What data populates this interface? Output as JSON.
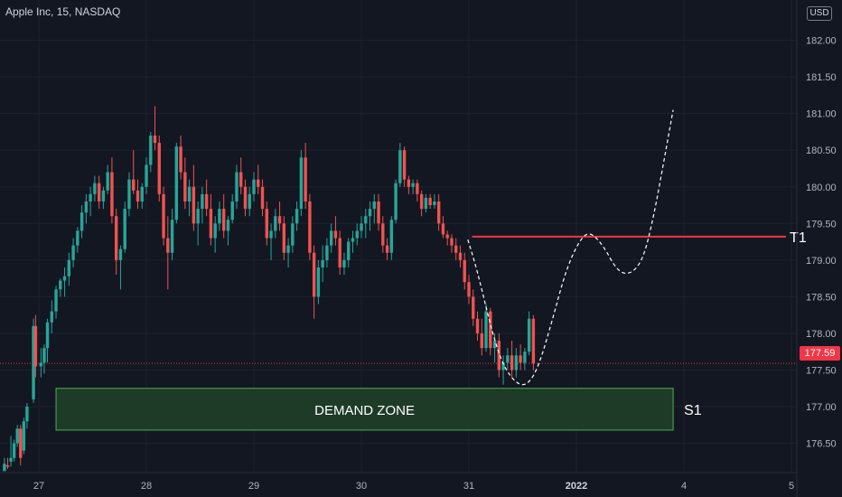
{
  "header": {
    "symbol_title": "Apple Inc, 15, NASDAQ",
    "currency": "USD"
  },
  "annotations": {
    "zone_label": "DEMAND ZONE",
    "s1_label": "S1",
    "t1_label": "T1",
    "last_price": "177.59"
  },
  "colors": {
    "background": "#131722",
    "up": "#26a69a",
    "down": "#ef5350",
    "target_line": "#f23645",
    "zone_fill": "#1e3b27",
    "zone_border": "#4caf50",
    "projection": "#ffffff"
  },
  "chart_data": {
    "type": "candlestick",
    "title": "Apple Inc, 15, NASDAQ",
    "y_axis": {
      "ticks": [
        176.5,
        177.0,
        177.5,
        178.0,
        178.5,
        179.0,
        179.5,
        180.0,
        180.5,
        181.0,
        181.5,
        182.0
      ],
      "range": [
        176.1,
        182.55
      ],
      "position": "right"
    },
    "x_axis": {
      "ticks": [
        {
          "label": "27",
          "x": 0
        },
        {
          "label": "28",
          "x": 10
        },
        {
          "label": "29",
          "x": 20
        },
        {
          "label": "30",
          "x": 30
        },
        {
          "label": "31",
          "x": 40
        },
        {
          "label": "2022",
          "x": 50,
          "bold": true
        },
        {
          "label": "4",
          "x": 60
        },
        {
          "label": "5",
          "x": 70
        }
      ]
    },
    "current_price": 177.59,
    "target": {
      "label": "T1",
      "price": 179.32,
      "from_x": 40.3,
      "to_x": 69.5
    },
    "demand_zone": {
      "label": "DEMAND ZONE",
      "side_label": "S1",
      "price_low": 176.68,
      "price_high": 177.25,
      "from_x": 1.6,
      "to_x": 59.0
    },
    "projection_path": [
      [
        39.9,
        179.28
      ],
      [
        40.5,
        179.0
      ],
      [
        41.2,
        178.6
      ],
      [
        42.2,
        178.0
      ],
      [
        43.2,
        177.55
      ],
      [
        44.5,
        177.3
      ],
      [
        45.5,
        177.3
      ],
      [
        46.5,
        177.55
      ],
      [
        47.8,
        178.2
      ],
      [
        49.0,
        178.85
      ],
      [
        50.2,
        179.25
      ],
      [
        51.2,
        179.4
      ],
      [
        52.5,
        179.2
      ],
      [
        53.8,
        178.85
      ],
      [
        55.0,
        178.8
      ],
      [
        56.2,
        179.0
      ],
      [
        57.2,
        179.6
      ],
      [
        58.2,
        180.4
      ],
      [
        59.0,
        181.05
      ]
    ],
    "candles": [
      [
        -3.2,
        176.12,
        176.3,
        176.15,
        176.22
      ],
      [
        -2.9,
        176.2,
        176.3,
        176.15,
        176.18
      ],
      [
        -2.6,
        176.25,
        176.6,
        176.18,
        176.3
      ],
      [
        -2.3,
        176.3,
        176.55,
        176.25,
        176.5
      ],
      [
        -2.0,
        176.5,
        176.75,
        176.45,
        176.7
      ],
      [
        -1.7,
        176.7,
        176.75,
        176.2,
        176.3
      ],
      [
        -1.4,
        176.4,
        176.85,
        176.35,
        176.8
      ],
      [
        -1.1,
        176.8,
        177.05,
        176.7,
        177.0
      ],
      [
        -0.5,
        177.1,
        178.2,
        177.05,
        178.1
      ],
      [
        -0.3,
        178.1,
        178.25,
        177.4,
        177.55
      ],
      [
        0.2,
        177.55,
        177.8,
        177.4,
        177.6
      ],
      [
        0.5,
        177.6,
        177.85,
        177.45,
        177.8
      ],
      [
        0.8,
        177.8,
        178.2,
        177.6,
        178.15
      ],
      [
        1.2,
        178.15,
        178.45,
        178.0,
        178.3
      ],
      [
        1.6,
        178.3,
        178.65,
        178.2,
        178.6
      ],
      [
        2.0,
        178.6,
        178.75,
        178.5,
        178.72
      ],
      [
        2.4,
        178.72,
        178.9,
        178.5,
        178.78
      ],
      [
        2.8,
        178.78,
        179.1,
        178.65,
        179.0
      ],
      [
        3.2,
        179.0,
        179.3,
        178.9,
        179.2
      ],
      [
        3.6,
        179.2,
        179.45,
        179.1,
        179.4
      ],
      [
        4.0,
        179.4,
        179.75,
        179.3,
        179.65
      ],
      [
        4.4,
        179.65,
        179.9,
        179.5,
        179.8
      ],
      [
        4.8,
        179.8,
        180.0,
        179.6,
        179.9
      ],
      [
        5.2,
        179.9,
        180.15,
        179.8,
        180.05
      ],
      [
        5.6,
        180.05,
        180.15,
        179.7,
        179.8
      ],
      [
        6.0,
        179.8,
        180.0,
        179.7,
        179.95
      ],
      [
        6.4,
        179.95,
        180.3,
        179.9,
        180.2
      ],
      [
        6.8,
        180.2,
        180.4,
        179.5,
        179.6
      ],
      [
        7.2,
        179.6,
        179.7,
        178.8,
        179.0
      ],
      [
        7.6,
        179.0,
        179.2,
        178.6,
        179.15
      ],
      [
        8.0,
        179.15,
        179.8,
        179.1,
        179.7
      ],
      [
        8.4,
        179.7,
        180.2,
        179.6,
        180.1
      ],
      [
        8.8,
        180.1,
        180.5,
        179.9,
        179.95
      ],
      [
        9.2,
        179.95,
        180.1,
        179.7,
        179.8
      ],
      [
        9.6,
        179.8,
        180.05,
        179.7,
        180.0
      ],
      [
        10.0,
        180.0,
        180.4,
        179.9,
        180.3
      ],
      [
        10.4,
        180.3,
        180.75,
        180.2,
        180.7
      ],
      [
        10.8,
        180.7,
        181.1,
        180.5,
        180.6
      ],
      [
        11.2,
        180.6,
        180.7,
        179.8,
        179.9
      ],
      [
        11.6,
        179.9,
        180.0,
        179.2,
        179.3
      ],
      [
        12.0,
        179.3,
        179.6,
        178.6,
        179.1
      ],
      [
        12.4,
        179.1,
        179.7,
        179.0,
        179.55
      ],
      [
        12.8,
        179.55,
        180.6,
        179.5,
        180.55
      ],
      [
        13.2,
        180.55,
        180.7,
        180.1,
        180.2
      ],
      [
        13.6,
        180.2,
        180.4,
        179.7,
        179.8
      ],
      [
        14.0,
        179.8,
        180.1,
        179.6,
        180.0
      ],
      [
        14.4,
        180.0,
        180.3,
        179.4,
        179.5
      ],
      [
        14.8,
        179.5,
        179.8,
        179.2,
        179.7
      ],
      [
        15.2,
        179.7,
        180.0,
        179.5,
        179.9
      ],
      [
        15.6,
        179.9,
        180.1,
        179.6,
        179.7
      ],
      [
        16.0,
        179.7,
        179.9,
        179.2,
        179.3
      ],
      [
        16.4,
        179.3,
        179.6,
        179.1,
        179.5
      ],
      [
        16.8,
        179.5,
        179.8,
        179.4,
        179.7
      ],
      [
        17.2,
        179.7,
        179.9,
        179.3,
        179.4
      ],
      [
        17.6,
        179.4,
        179.6,
        179.2,
        179.55
      ],
      [
        18.0,
        179.55,
        179.9,
        179.5,
        179.8
      ],
      [
        18.4,
        179.8,
        180.3,
        179.7,
        180.2
      ],
      [
        18.8,
        180.2,
        180.4,
        179.9,
        180.0
      ],
      [
        19.2,
        180.0,
        180.1,
        179.6,
        179.7
      ],
      [
        19.6,
        179.7,
        180.0,
        179.6,
        179.9
      ],
      [
        20.0,
        179.9,
        180.2,
        179.8,
        180.1
      ],
      [
        20.4,
        180.1,
        180.3,
        179.9,
        180.0
      ],
      [
        20.8,
        180.0,
        180.1,
        179.6,
        179.7
      ],
      [
        21.2,
        179.7,
        179.8,
        179.2,
        179.3
      ],
      [
        21.6,
        179.3,
        179.5,
        179.0,
        179.4
      ],
      [
        22.0,
        179.4,
        179.7,
        179.3,
        179.6
      ],
      [
        22.4,
        179.6,
        179.8,
        179.4,
        179.5
      ],
      [
        22.8,
        179.5,
        179.6,
        179.0,
        179.1
      ],
      [
        23.2,
        179.1,
        179.3,
        178.9,
        179.2
      ],
      [
        23.6,
        179.2,
        179.6,
        179.1,
        179.5
      ],
      [
        24.0,
        179.5,
        179.8,
        179.4,
        179.7
      ],
      [
        24.4,
        179.7,
        180.5,
        179.6,
        180.4
      ],
      [
        24.8,
        180.4,
        180.6,
        179.7,
        179.8
      ],
      [
        25.2,
        179.8,
        179.9,
        179.0,
        179.1
      ],
      [
        25.6,
        179.1,
        179.2,
        178.2,
        178.5
      ],
      [
        26.0,
        178.5,
        179.0,
        178.4,
        178.9
      ],
      [
        26.4,
        178.9,
        179.2,
        178.7,
        179.0
      ],
      [
        26.8,
        179.0,
        179.3,
        178.9,
        179.2
      ],
      [
        27.2,
        179.2,
        179.5,
        179.1,
        179.4
      ],
      [
        27.6,
        179.4,
        179.6,
        179.2,
        179.3
      ],
      [
        28.0,
        179.3,
        179.4,
        178.8,
        178.9
      ],
      [
        28.4,
        178.9,
        179.1,
        178.8,
        179.0
      ],
      [
        28.8,
        179.0,
        179.3,
        178.9,
        179.25
      ],
      [
        29.2,
        179.25,
        179.4,
        179.1,
        179.3
      ],
      [
        29.6,
        179.3,
        179.5,
        179.2,
        179.4
      ],
      [
        30.0,
        179.4,
        179.6,
        179.3,
        179.5
      ],
      [
        30.4,
        179.5,
        179.7,
        179.3,
        179.6
      ],
      [
        30.8,
        179.6,
        179.8,
        179.4,
        179.7
      ],
      [
        31.2,
        179.7,
        179.9,
        179.5,
        179.8
      ],
      [
        31.6,
        179.8,
        179.9,
        179.4,
        179.5
      ],
      [
        32.0,
        179.5,
        179.6,
        179.1,
        179.2
      ],
      [
        32.4,
        179.2,
        179.3,
        179.0,
        179.1
      ],
      [
        32.8,
        179.1,
        179.6,
        179.0,
        179.55
      ],
      [
        33.2,
        179.55,
        180.1,
        179.5,
        180.05
      ],
      [
        33.6,
        180.05,
        180.6,
        180.0,
        180.5
      ],
      [
        34.0,
        180.5,
        180.55,
        180.0,
        180.1
      ],
      [
        34.4,
        180.1,
        180.15,
        179.9,
        180.0
      ],
      [
        34.8,
        180.0,
        180.1,
        179.9,
        180.05
      ],
      [
        35.2,
        180.05,
        180.1,
        179.8,
        179.9
      ],
      [
        35.6,
        179.9,
        179.95,
        179.6,
        179.7
      ],
      [
        36.0,
        179.7,
        179.9,
        179.65,
        179.85
      ],
      [
        36.4,
        179.85,
        179.9,
        179.7,
        179.75
      ],
      [
        36.8,
        179.75,
        179.9,
        179.7,
        179.8
      ],
      [
        37.2,
        179.8,
        179.9,
        179.4,
        179.5
      ],
      [
        37.6,
        179.5,
        179.6,
        179.3,
        179.35
      ],
      [
        38.0,
        179.35,
        179.4,
        179.2,
        179.3
      ],
      [
        38.4,
        179.3,
        179.35,
        179.1,
        179.2
      ],
      [
        38.8,
        179.2,
        179.3,
        179.0,
        179.1
      ],
      [
        39.2,
        179.1,
        179.2,
        178.9,
        179.0
      ],
      [
        39.6,
        179.0,
        179.1,
        178.6,
        178.7
      ],
      [
        40.0,
        178.7,
        178.8,
        178.4,
        178.5
      ],
      [
        40.4,
        178.5,
        178.6,
        178.1,
        178.2
      ],
      [
        40.8,
        178.2,
        178.3,
        177.9,
        178.0
      ],
      [
        41.2,
        178.0,
        178.2,
        177.7,
        177.8
      ],
      [
        41.6,
        177.8,
        178.4,
        177.75,
        178.3
      ],
      [
        42.0,
        178.3,
        178.35,
        177.7,
        177.8
      ],
      [
        42.4,
        177.8,
        178.0,
        177.6,
        177.9
      ],
      [
        42.8,
        177.9,
        178.0,
        177.4,
        177.5
      ],
      [
        43.2,
        177.5,
        177.7,
        177.3,
        177.6
      ],
      [
        43.6,
        177.6,
        177.8,
        177.5,
        177.7
      ],
      [
        44.0,
        177.7,
        177.9,
        177.4,
        177.5
      ],
      [
        44.4,
        177.5,
        177.8,
        177.4,
        177.7
      ],
      [
        44.8,
        177.7,
        177.85,
        177.5,
        177.6
      ],
      [
        45.2,
        177.6,
        177.8,
        177.5,
        177.75
      ],
      [
        45.6,
        177.75,
        178.3,
        177.7,
        178.2
      ],
      [
        46.0,
        178.2,
        178.25,
        177.5,
        177.59
      ]
    ]
  }
}
